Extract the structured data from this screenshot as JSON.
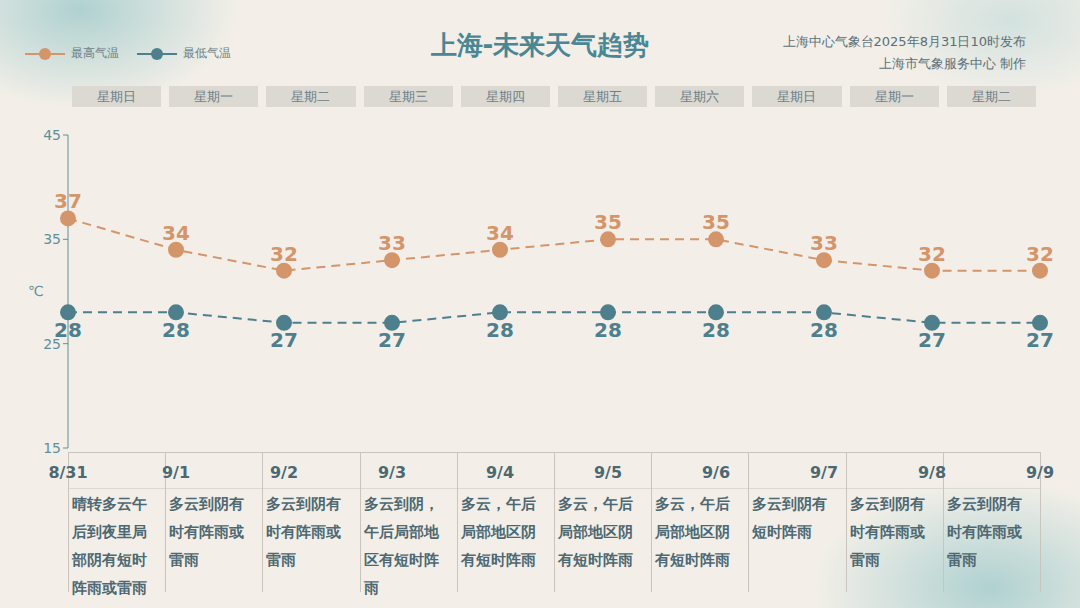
{
  "chart_data": {
    "type": "line",
    "title": "上海-未来天气趋势",
    "publisher": [
      "上海中心气象台2025年8月31日10时发布",
      "上海市气象服务中心 制作"
    ],
    "categories": [
      "8/31",
      "9/1",
      "9/2",
      "9/3",
      "9/4",
      "9/5",
      "9/6",
      "9/7",
      "9/8",
      "9/9"
    ],
    "weekdays": [
      "星期日",
      "星期一",
      "星期二",
      "星期三",
      "星期四",
      "星期五",
      "星期六",
      "星期日",
      "星期一",
      "星期二"
    ],
    "descriptions": [
      "晴转多云午后到夜里局部阴有短时阵雨或雷雨",
      "多云到阴有时有阵雨或雷雨",
      "多云到阴有时有阵雨或雷雨",
      "多云到阴，午后局部地区有短时阵雨",
      "多云，午后局部地区阴有短时阵雨",
      "多云，午后局部地区阴有短时阵雨",
      "多云，午后局部地区阴有短时阵雨",
      "多云到阴有短时阵雨",
      "多云到阴有时有阵雨或雷雨",
      "多云到阴有时有阵雨或雷雨"
    ],
    "y_label": "℃",
    "series": [
      {
        "name": "最高气温",
        "color": "#d4956a",
        "values": [
          37,
          34,
          32,
          33,
          34,
          35,
          35,
          33,
          32,
          32
        ],
        "line_style": "dashed",
        "marker": "circle"
      },
      {
        "name": "最低气温",
        "color": "#4e7f8c",
        "values": [
          28,
          28,
          27,
          27,
          28,
          28,
          28,
          28,
          27,
          27
        ],
        "line_style": "dashed",
        "marker": "circle"
      }
    ],
    "ylim": [
      15,
      45
    ],
    "yticks": [
      15,
      25,
      35,
      45
    ],
    "data_labels": true,
    "grid": false,
    "legend": "top-left"
  }
}
